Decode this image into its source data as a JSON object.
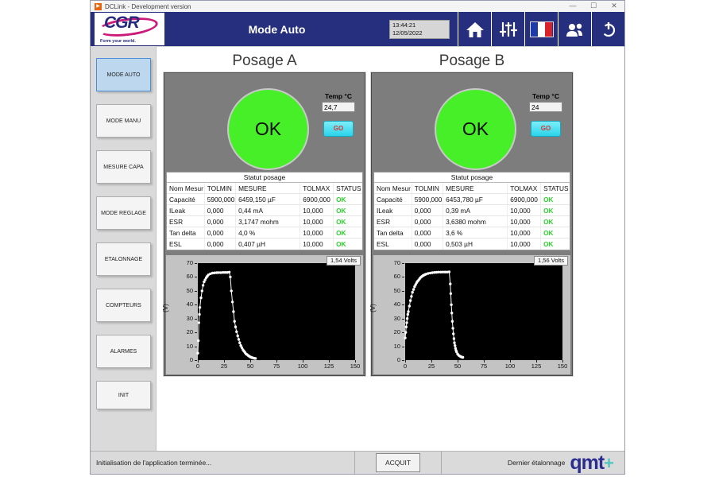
{
  "window": {
    "title": "DCLink - Development version",
    "controls": {
      "minimize": "—",
      "maximize": "☐",
      "close": "✕"
    }
  },
  "header": {
    "title": "Mode Auto",
    "logo": {
      "text": "CGR",
      "tagline": "Form your world."
    },
    "clock": {
      "time": "13:44:21",
      "date": "12/05/2022"
    },
    "icons": [
      "home-icon",
      "sliders-icon",
      "french-flag-icon",
      "users-icon",
      "power-icon"
    ]
  },
  "sidebar": {
    "items": [
      {
        "label": "MODE AUTO",
        "active": true
      },
      {
        "label": "MODE MANU",
        "active": false
      },
      {
        "label": "MESURE CAPA",
        "active": false
      },
      {
        "label": "MODE REGLAGE",
        "active": false
      },
      {
        "label": "ETALONNAGE",
        "active": false
      },
      {
        "label": "COMPTEURS",
        "active": false
      },
      {
        "label": "ALARMES",
        "active": false
      },
      {
        "label": "INIT",
        "active": false
      }
    ]
  },
  "panels": [
    {
      "title": "Posage A",
      "status": "OK",
      "temp_label": "Temp °C",
      "temp_value": "24,7",
      "go_label": "GO",
      "table": {
        "title": "Statut posage",
        "columns": [
          "Nom Mesur",
          "TOLMIN",
          "MESURE",
          "TOLMAX",
          "STATUS"
        ],
        "rows": [
          [
            "Capacité",
            "5900,000",
            "6459,150 µF",
            "6900,000",
            "OK"
          ],
          [
            "ILeak",
            "0,000",
            "0,44 mA",
            "10,000",
            "OK"
          ],
          [
            "ESR",
            "0,000",
            "3,1747 mohm",
            "10,000",
            "OK"
          ],
          [
            "Tan delta",
            "0,000",
            "4,0 %",
            "10,000",
            "OK"
          ],
          [
            "ESL",
            "0,000",
            "0,407 µH",
            "10,000",
            "OK"
          ]
        ]
      }
    },
    {
      "title": "Posage B",
      "status": "OK",
      "temp_label": "Temp °C",
      "temp_value": "24",
      "go_label": "GO",
      "table": {
        "title": "Statut posage",
        "columns": [
          "Nom Mesur",
          "TOLMIN",
          "MESURE",
          "TOLMAX",
          "STATUS"
        ],
        "rows": [
          [
            "Capacité",
            "5900,000",
            "6453,780 µF",
            "6900,000",
            "OK"
          ],
          [
            "ILeak",
            "0,000",
            "0,39 mA",
            "10,000",
            "OK"
          ],
          [
            "ESR",
            "0,000",
            "3,6380 mohm",
            "10,000",
            "OK"
          ],
          [
            "Tan delta",
            "0,000",
            "3,6 %",
            "10,000",
            "OK"
          ],
          [
            "ESL",
            "0,000",
            "0,503 µH",
            "10,000",
            "OK"
          ]
        ]
      }
    }
  ],
  "chart_data": [
    {
      "type": "line",
      "title": "Posage A discharge curve",
      "volts_label": "1,54 Volts",
      "ylabel": "(V)",
      "xlim": [
        0,
        150
      ],
      "ylim": [
        0,
        70
      ],
      "xticks": [
        0,
        25,
        50,
        75,
        100,
        125,
        150
      ],
      "yticks": [
        0,
        10,
        20,
        30,
        40,
        50,
        60,
        70
      ],
      "line_color": "#ffffff",
      "points": [
        [
          0,
          5
        ],
        [
          0.5,
          14
        ],
        [
          1,
          27
        ],
        [
          1.5,
          33
        ],
        [
          2,
          38
        ],
        [
          3,
          45
        ],
        [
          4,
          50
        ],
        [
          5,
          54
        ],
        [
          6,
          56.5
        ],
        [
          7,
          58
        ],
        [
          8,
          59.5
        ],
        [
          9,
          60.5
        ],
        [
          10,
          61.5
        ],
        [
          12,
          62.3
        ],
        [
          14,
          62.8
        ],
        [
          16,
          63
        ],
        [
          18,
          63.1
        ],
        [
          20,
          63.2
        ],
        [
          22,
          63.2
        ],
        [
          24,
          63.3
        ],
        [
          26,
          63.3
        ],
        [
          28,
          63.3
        ],
        [
          30,
          63.5
        ],
        [
          31,
          60
        ],
        [
          32,
          50
        ],
        [
          33,
          42
        ],
        [
          34,
          35
        ],
        [
          35,
          28
        ],
        [
          36,
          24
        ],
        [
          37,
          20.5
        ],
        [
          38,
          17.5
        ],
        [
          39,
          15
        ],
        [
          40,
          12.5
        ],
        [
          41,
          10.5
        ],
        [
          42,
          9
        ],
        [
          43,
          7.5
        ],
        [
          44,
          6.5
        ],
        [
          45,
          5.5
        ],
        [
          46,
          4.5
        ],
        [
          47,
          4
        ],
        [
          48,
          3.3
        ],
        [
          49,
          2.8
        ],
        [
          50,
          2.3
        ],
        [
          51,
          2
        ],
        [
          52,
          1.7
        ],
        [
          53,
          1.5
        ],
        [
          54,
          1.3
        ],
        [
          55,
          1.2
        ]
      ]
    },
    {
      "type": "line",
      "title": "Posage B discharge curve",
      "volts_label": "1,56 Volts",
      "ylabel": "(V)",
      "xlim": [
        0,
        150
      ],
      "ylim": [
        0,
        70
      ],
      "xticks": [
        0,
        25,
        50,
        75,
        100,
        125,
        150
      ],
      "yticks": [
        0,
        10,
        20,
        30,
        40,
        50,
        60,
        70
      ],
      "line_color": "#ffffff",
      "points": [
        [
          0,
          16
        ],
        [
          0.5,
          20
        ],
        [
          1,
          24
        ],
        [
          1.5,
          27
        ],
        [
          2,
          30
        ],
        [
          2.5,
          33
        ],
        [
          3,
          35
        ],
        [
          4,
          39
        ],
        [
          5,
          43
        ],
        [
          6,
          46
        ],
        [
          7,
          49
        ],
        [
          8,
          51
        ],
        [
          9,
          53
        ],
        [
          10,
          54.5
        ],
        [
          11,
          56
        ],
        [
          12,
          57
        ],
        [
          13,
          58
        ],
        [
          14,
          59
        ],
        [
          15,
          59.8
        ],
        [
          16,
          60.4
        ],
        [
          17,
          61
        ],
        [
          18,
          61.4
        ],
        [
          19,
          61.8
        ],
        [
          20,
          62.1
        ],
        [
          22,
          62.6
        ],
        [
          24,
          62.9
        ],
        [
          26,
          63.1
        ],
        [
          28,
          63.3
        ],
        [
          30,
          63.4
        ],
        [
          32,
          63.5
        ],
        [
          34,
          63.5
        ],
        [
          36,
          63.6
        ],
        [
          38,
          63.6
        ],
        [
          40,
          63.6
        ],
        [
          42,
          63.7
        ],
        [
          43,
          55
        ],
        [
          43.5,
          48
        ],
        [
          44,
          40
        ],
        [
          44.5,
          34
        ],
        [
          45,
          28
        ],
        [
          45.5,
          23
        ],
        [
          46,
          19
        ],
        [
          46.5,
          15.5
        ],
        [
          47,
          12.5
        ],
        [
          47.5,
          10.5
        ],
        [
          48,
          8.5
        ],
        [
          48.5,
          7
        ],
        [
          49,
          6
        ],
        [
          50,
          4.5
        ],
        [
          51,
          3.5
        ],
        [
          52,
          3
        ],
        [
          53,
          2.5
        ],
        [
          54,
          2.2
        ],
        [
          55,
          2
        ]
      ]
    }
  ],
  "statusbar": {
    "message": "Initialisation de l'application terminée...",
    "acquit_label": "ACQUIT",
    "last_cal_label": "Dernier étalonnage",
    "logo_text": "qmt",
    "logo_plus": "+"
  },
  "colors": {
    "header_navy": "#252f7d",
    "ok_green": "#46ef28",
    "status_ok_green": "#2ed22e",
    "go_cyan": "#29d3ea",
    "go_text_red": "#e23030",
    "panel_gray": "#7d7d7d"
  }
}
